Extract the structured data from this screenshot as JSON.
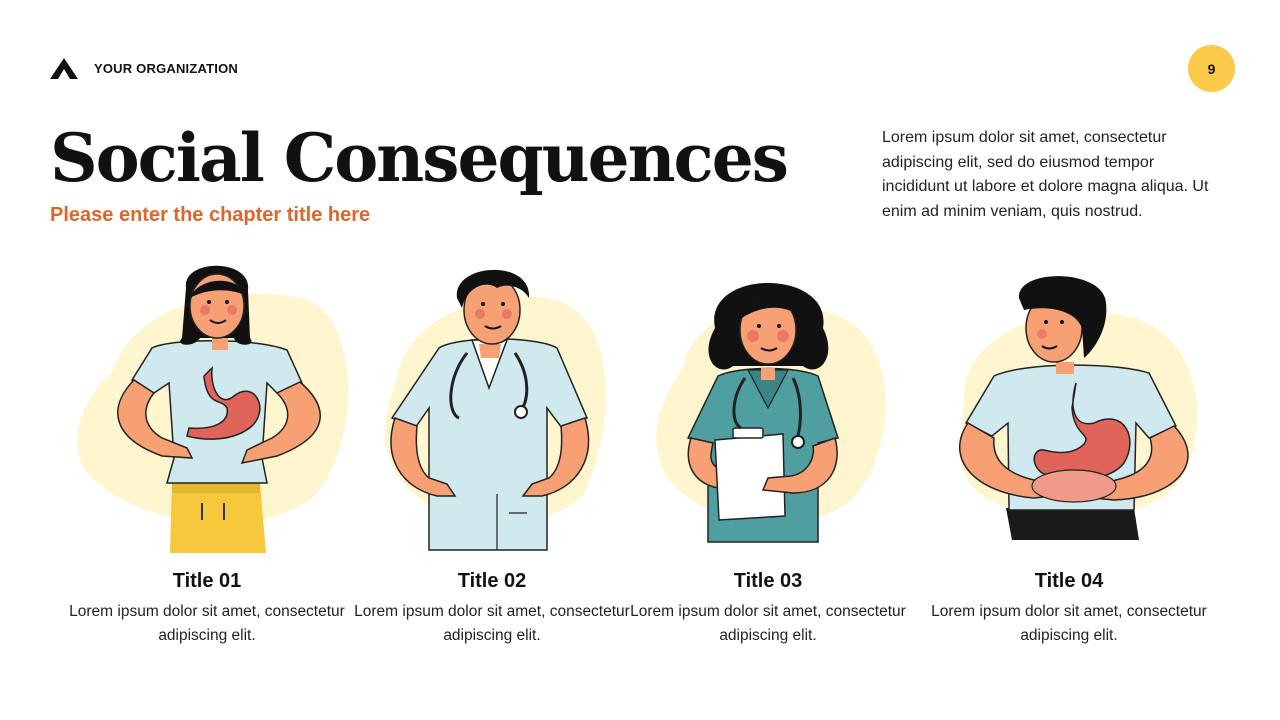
{
  "header": {
    "organization": "YOUR ORGANIZATION",
    "logo_icon": "triangle-logo-icon"
  },
  "page_number": "9",
  "title": "Social Consequences",
  "subtitle": "Please enter the chapter title here",
  "intro": "Lorem ipsum dolor sit amet, consectetur adipiscing elit, sed do eiusmod tempor incididunt ut labore et dolore magna aliqua. Ut enim ad minim veniam, quis nostrud.",
  "colors": {
    "accent": "#e0642c",
    "badge": "#fdc94a",
    "blob": "#fff6cf",
    "skin": "#f7a074",
    "scrubs_light": "#cfe9ee",
    "scrubs_teal": "#4f9ea0",
    "stomach": "#e0645a",
    "pants_yellow": "#f8c83c"
  },
  "cards": [
    {
      "title": "Title 01",
      "text": "Lorem ipsum dolor sit amet, consectetur adipiscing elit.",
      "illustration": "woman-stomach-ache-icon"
    },
    {
      "title": "Title 02",
      "text": "Lorem ipsum dolor sit amet, consectetur adipiscing elit.",
      "illustration": "male-doctor-stethoscope-icon"
    },
    {
      "title": "Title 03",
      "text": "Lorem ipsum dolor sit amet, consectetur adipiscing elit.",
      "illustration": "female-doctor-clipboard-icon"
    },
    {
      "title": "Title 04",
      "text": "Lorem ipsum dolor sit amet, consectetur adipiscing elit.",
      "illustration": "man-digestive-system-icon"
    }
  ]
}
